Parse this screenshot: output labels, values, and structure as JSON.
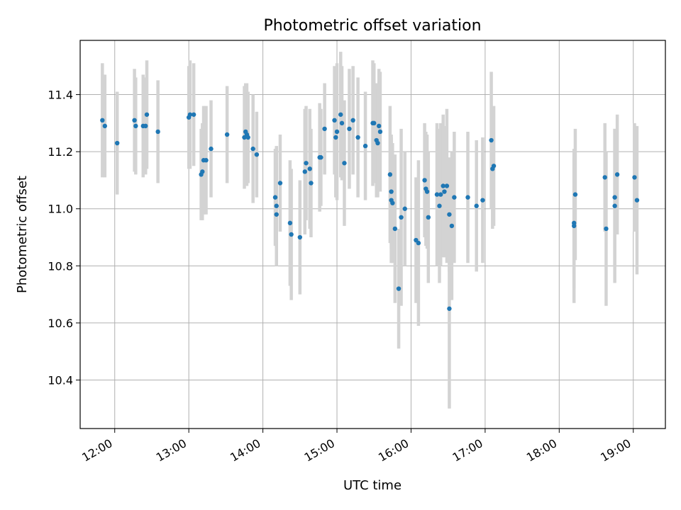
{
  "chart_data": {
    "type": "scatter",
    "title": "Photometric offset variation",
    "xlabel": "UTC time",
    "ylabel": "Photometric offset",
    "grid": true,
    "xlim": [
      "11:32",
      "19:26"
    ],
    "ylim": [
      10.23,
      11.59
    ],
    "xticks": [
      "12:00",
      "13:00",
      "14:00",
      "15:00",
      "16:00",
      "17:00",
      "18:00",
      "19:00"
    ],
    "yticks": [
      10.4,
      10.6,
      10.8,
      11.0,
      11.2,
      11.4
    ],
    "colors": {
      "point": "#1f77b4",
      "errorbar": "#d3d3d3",
      "grid": "#b0b0b0"
    },
    "series": [
      {
        "x": [
          "11:50",
          "11:52",
          "12:02",
          "12:16",
          "12:17",
          "12:23",
          "12:25",
          "12:26",
          "12:35",
          "13:00",
          "13:01",
          "13:04",
          "13:10",
          "13:11",
          "13:12",
          "13:14",
          "13:18",
          "13:31",
          "13:45",
          "13:46",
          "13:47",
          "13:48",
          "13:52",
          "13:55",
          "14:10",
          "14:11",
          "14:11",
          "14:14",
          "14:22",
          "14:23",
          "14:30",
          "14:34",
          "14:35",
          "14:38",
          "14:39",
          "14:46",
          "14:47",
          "14:50",
          "14:58",
          "14:59",
          "15:00",
          "15:03",
          "15:04",
          "15:06",
          "15:10",
          "15:13",
          "15:17",
          "15:23",
          "15:29",
          "15:30",
          "15:32",
          "15:33",
          "15:34",
          "15:35",
          "15:43",
          "15:44",
          "15:44",
          "15:45",
          "15:47",
          "15:50",
          "15:52",
          "15:55",
          "16:04",
          "16:06",
          "16:11",
          "16:12",
          "16:13",
          "16:14",
          "16:21",
          "16:23",
          "16:24",
          "16:26",
          "16:27",
          "16:29",
          "16:31",
          "16:31",
          "16:33",
          "16:35",
          "16:46",
          "16:53",
          "16:58",
          "17:05",
          "17:06",
          "17:07",
          "18:12",
          "18:12",
          "18:13",
          "18:37",
          "18:38",
          "18:45",
          "18:45",
          "18:47",
          "19:01",
          "19:03"
        ],
        "y": [
          11.31,
          11.29,
          11.23,
          11.31,
          11.29,
          11.29,
          11.29,
          11.33,
          11.27,
          11.32,
          11.33,
          11.33,
          11.12,
          11.13,
          11.17,
          11.17,
          11.21,
          11.26,
          11.25,
          11.27,
          11.26,
          11.25,
          11.21,
          11.19,
          11.04,
          11.01,
          10.98,
          11.09,
          10.95,
          10.91,
          10.9,
          11.13,
          11.16,
          11.14,
          11.09,
          11.18,
          11.18,
          11.28,
          11.31,
          11.25,
          11.27,
          11.33,
          11.3,
          11.16,
          11.28,
          11.31,
          11.25,
          11.22,
          11.3,
          11.3,
          11.24,
          11.23,
          11.29,
          11.27,
          11.12,
          11.03,
          11.06,
          11.02,
          10.93,
          10.72,
          10.97,
          11.0,
          10.89,
          10.88,
          11.1,
          11.07,
          11.06,
          10.97,
          11.05,
          11.01,
          11.05,
          11.08,
          11.06,
          11.08,
          10.98,
          10.65,
          10.94,
          11.04,
          11.04,
          11.01,
          11.03,
          11.24,
          11.14,
          11.15,
          10.95,
          10.94,
          11.05,
          11.11,
          10.93,
          11.04,
          11.01,
          11.12,
          11.11,
          11.03
        ],
        "yerr": [
          0.2,
          0.18,
          0.18,
          0.18,
          0.17,
          0.18,
          0.17,
          0.19,
          0.18,
          0.18,
          0.19,
          0.18,
          0.16,
          0.17,
          0.19,
          0.19,
          0.17,
          0.17,
          0.18,
          0.17,
          0.18,
          0.16,
          0.19,
          0.15,
          0.17,
          0.21,
          0.18,
          0.17,
          0.22,
          0.23,
          0.2,
          0.22,
          0.2,
          0.21,
          0.19,
          0.19,
          0.17,
          0.16,
          0.19,
          0.21,
          0.24,
          0.22,
          0.2,
          0.22,
          0.21,
          0.19,
          0.21,
          0.19,
          0.22,
          0.21,
          0.2,
          0.19,
          0.2,
          0.21,
          0.24,
          0.22,
          0.2,
          0.21,
          0.26,
          0.21,
          0.31,
          0.2,
          0.22,
          0.29,
          0.2,
          0.2,
          0.2,
          0.23,
          0.25,
          0.27,
          0.25,
          0.25,
          0.23,
          0.27,
          0.2,
          0.35,
          0.26,
          0.23,
          0.23,
          0.23,
          0.22,
          0.24,
          0.21,
          0.21,
          0.23,
          0.27,
          0.23,
          0.19,
          0.27,
          0.24,
          0.27,
          0.21,
          0.19,
          0.26
        ]
      }
    ]
  }
}
